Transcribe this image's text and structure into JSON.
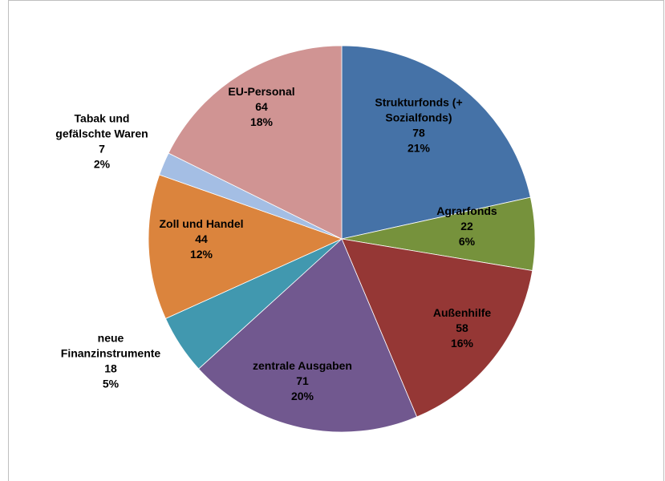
{
  "chart_data": {
    "type": "pie",
    "title": "",
    "slices": [
      {
        "name_lines": [
          "Strukturfonds (+",
          "Sozialfonds)"
        ],
        "value": 78,
        "percent": "21%",
        "color": "#4572A7"
      },
      {
        "name_lines": [
          "Agrarfonds"
        ],
        "value": 22,
        "percent": "6%",
        "color": "#76923C"
      },
      {
        "name_lines": [
          "Außenhilfe"
        ],
        "value": 58,
        "percent": "16%",
        "color": "#953735"
      },
      {
        "name_lines": [
          "zentrale Ausgaben"
        ],
        "value": 71,
        "percent": "20%",
        "color": "#71588F"
      },
      {
        "name_lines": [
          "neue",
          "Finanzinstrumente"
        ],
        "value": 18,
        "percent": "5%",
        "color": "#4198AF"
      },
      {
        "name_lines": [
          "Zoll und Handel"
        ],
        "value": 44,
        "percent": "12%",
        "color": "#DB843D"
      },
      {
        "name_lines": [
          "Tabak und",
          "gefälschte Waren"
        ],
        "value": 7,
        "percent": "2%",
        "color": "#A4BEE4"
      },
      {
        "name_lines": [
          "EU-Personal"
        ],
        "value": 64,
        "percent": "18%",
        "color": "#D09493"
      }
    ],
    "legend": "none",
    "labels": "category, value and percent on each slice"
  }
}
